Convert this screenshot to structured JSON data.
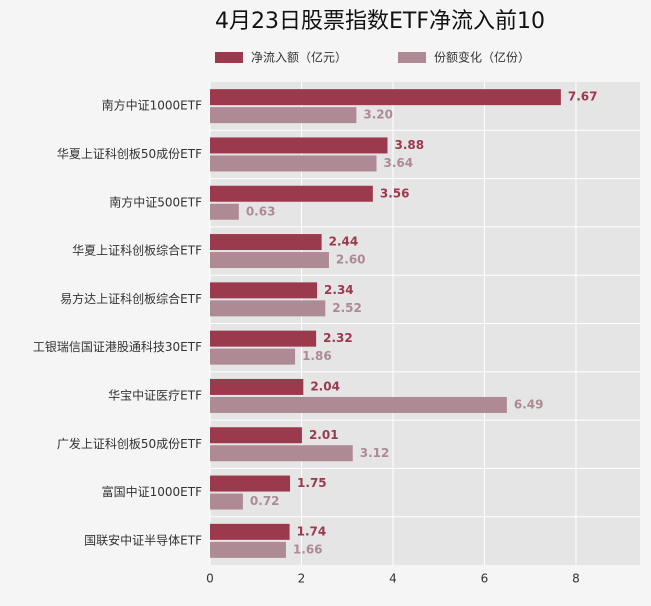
{
  "chart_data": {
    "type": "hbar",
    "title": "4月23日股票指数ETF净流入前10",
    "categories": [
      "南方中证1000ETF",
      "华夏上证科创板50成份ETF",
      "南方中证500ETF",
      "华夏上证科创板综合ETF",
      "易方达上证科创板综合ETF",
      "工银瑞信国证港股通科技30ETF",
      "华宝中证医疗ETF",
      "广发上证科创板50成份ETF",
      "富国中证1000ETF",
      "国联安中证半导体ETF"
    ],
    "series": [
      {
        "name": "净流入额（亿元）",
        "color": "#9b3a4c",
        "values": [
          7.67,
          3.88,
          3.56,
          2.44,
          2.34,
          2.32,
          2.04,
          2.01,
          1.75,
          1.74
        ]
      },
      {
        "name": "份额变化（亿份）",
        "color": "#ae8a94",
        "values": [
          3.2,
          3.64,
          0.63,
          2.6,
          2.52,
          1.86,
          6.49,
          3.12,
          0.72,
          1.66
        ],
        "value_labels": [
          "3.20",
          "3.64",
          "0.63",
          "2.60",
          "2.52",
          "1.86",
          "6.49",
          "3.12",
          "0.72",
          "1.66"
        ]
      }
    ],
    "xlim": [
      0,
      9.4
    ],
    "xticks": [
      0,
      2,
      4,
      6,
      8
    ],
    "grid": true
  }
}
